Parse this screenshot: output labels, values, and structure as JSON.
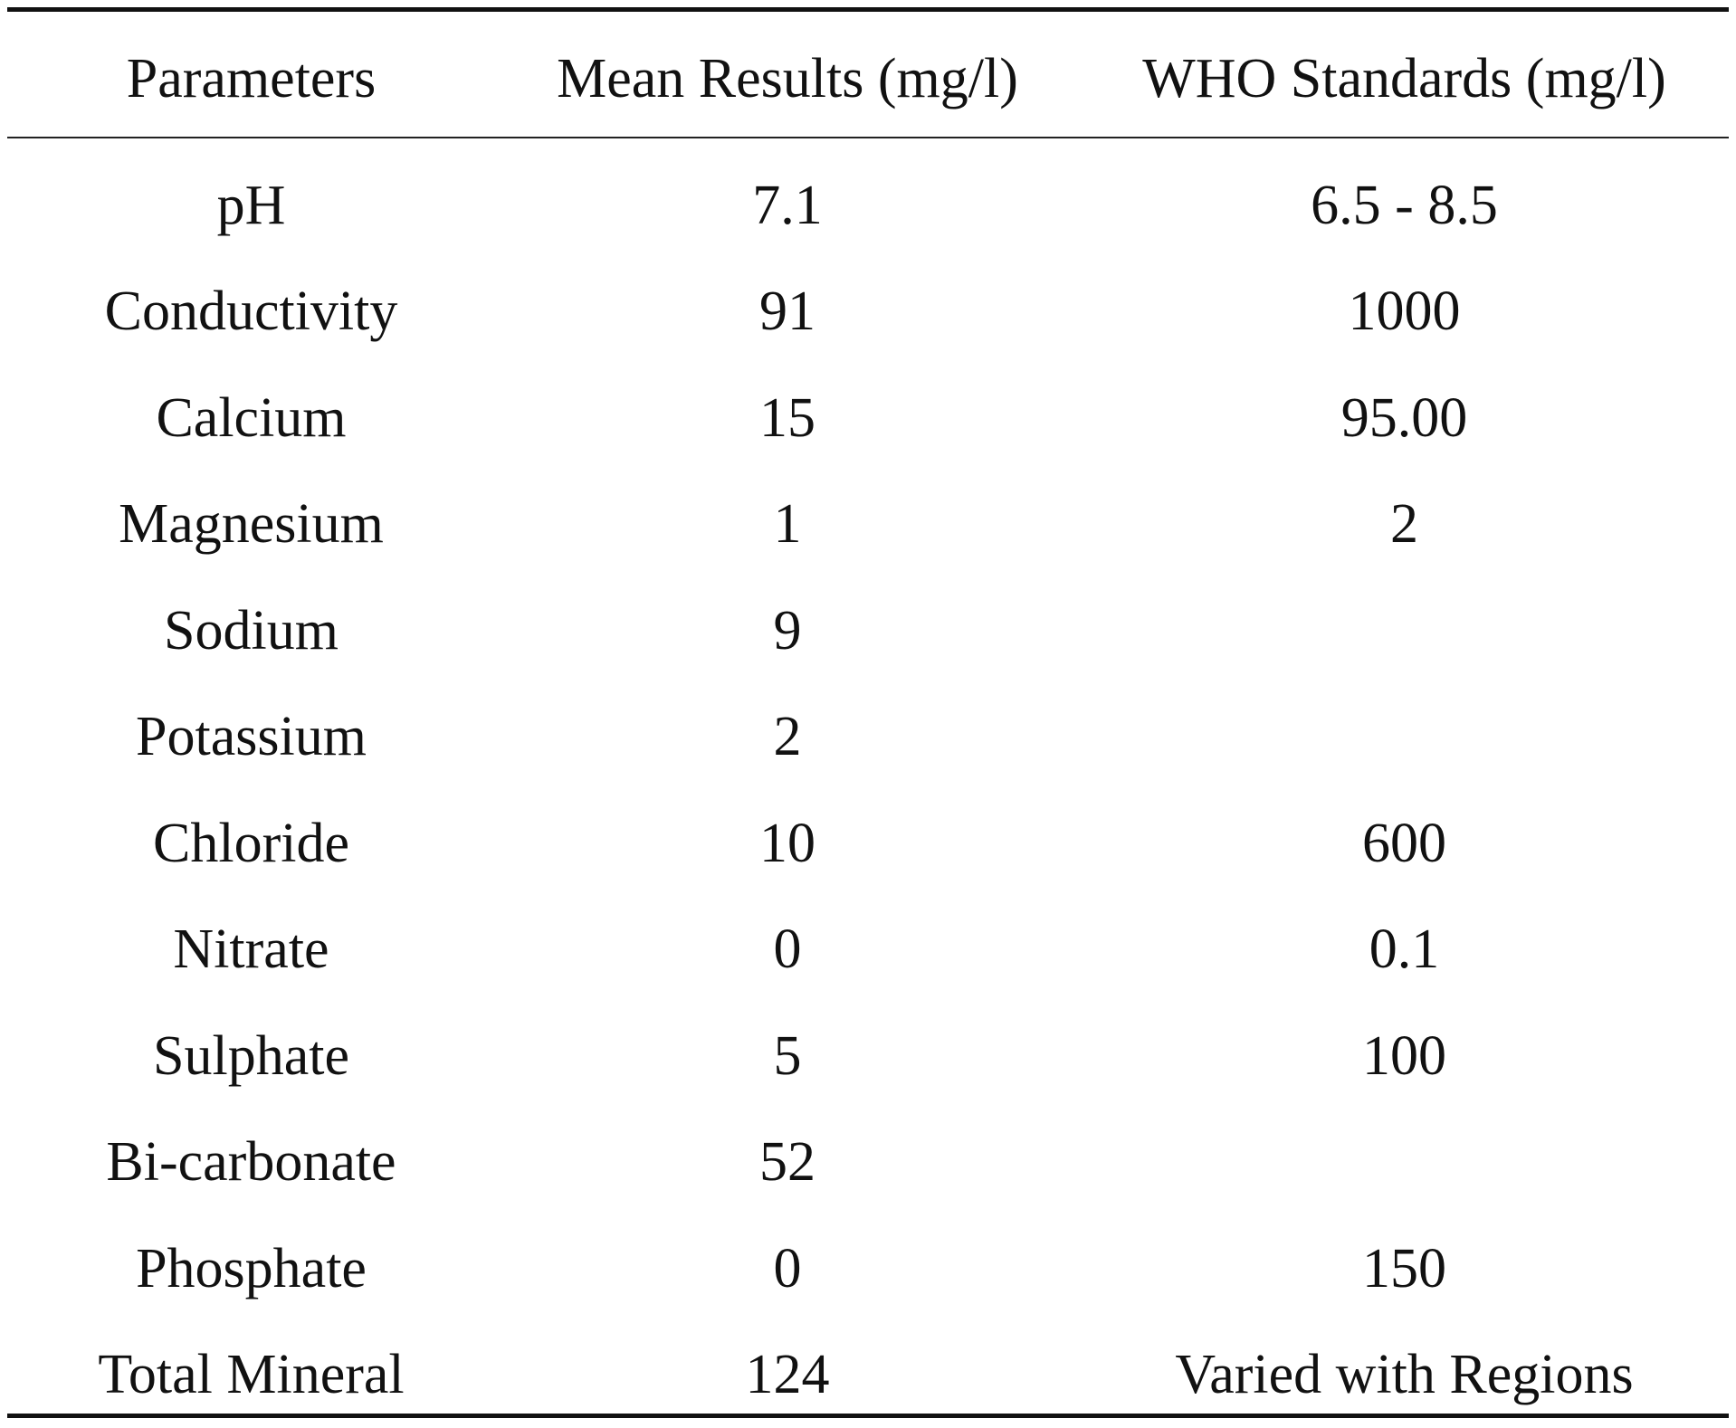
{
  "table": {
    "headers": [
      "Parameters",
      "Mean Results (mg/l)",
      "WHO Standards (mg/l)"
    ],
    "rows": [
      [
        "pH",
        "7.1",
        "6.5 - 8.5"
      ],
      [
        "Conductivity",
        "91",
        "1000"
      ],
      [
        "Calcium",
        "15",
        "95.00"
      ],
      [
        "Magnesium",
        "1",
        "2"
      ],
      [
        "Sodium",
        "9",
        ""
      ],
      [
        "Potassium",
        "2",
        ""
      ],
      [
        "Chloride",
        "10",
        "600"
      ],
      [
        "Nitrate",
        "0",
        "0.1"
      ],
      [
        "Sulphate",
        "5",
        "100"
      ],
      [
        "Bi-carbonate",
        "52",
        ""
      ],
      [
        "Phosphate",
        "0",
        "150"
      ],
      [
        "Total Mineral",
        "124",
        "Varied with Regions"
      ]
    ]
  }
}
